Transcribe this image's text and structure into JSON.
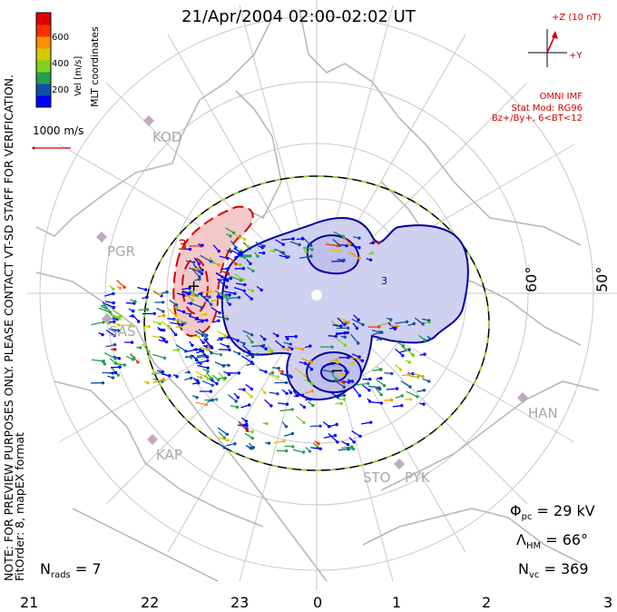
{
  "title": "21/Apr/2004 02:00-02:02 UT",
  "mlt_hours": [
    "21",
    "22",
    "23",
    "0",
    "1",
    "2",
    "3"
  ],
  "lat_labels": [
    "60°",
    "50°"
  ],
  "colorbar": {
    "ticks": [
      "600",
      "400",
      "200"
    ],
    "label": "Vel [m/s]",
    "colors": [
      "#0000ff",
      "#1050a8",
      "#20a050",
      "#80d020",
      "#d8c800",
      "#ff9000",
      "#ff3000",
      "#e00000"
    ]
  },
  "coord_label": "MLT coordinates",
  "scale_vector": "1000 m/s",
  "imf": {
    "bz_label": "+Z (10 nT)",
    "by_label": "+Y",
    "source": "OMNI IMF",
    "model_line1": "Stat Mod: RG96",
    "model_line2": "Bz+/By+, 6<BT<12"
  },
  "preview_note": "NOTE: FOR PREVIEW PURPOSES ONLY. PLEASE CONTACT VT-SD STAFF FOR VERIFICATION.",
  "fit_order": "FitOrder: 8, mapEX format",
  "stats": {
    "phi_symbol": "Φ",
    "phi_sub": "pc",
    "phi_value": "= 29 kV",
    "lambda_symbol": "Λ",
    "lambda_sub": "HM",
    "lambda_value": "= 66°",
    "nvc_symbol": "N",
    "nvc_sub": "vc",
    "nvc_value": "= 369",
    "nrads_symbol": "N",
    "nrads_sub": "rads",
    "nrads_value": "= 7"
  },
  "radar_sites": [
    "KOD",
    "PGR",
    "SAS",
    "KAP",
    "STO",
    "PYK",
    "HAN"
  ],
  "cell_signs": [
    "+",
    "−"
  ],
  "contour_labels": [
    "3",
    "3"
  ],
  "colors": {
    "contour_pos": "#d00000",
    "contour_neg": "#0000a0",
    "boundary_dash": "#90d040",
    "land": "#b8b8b8",
    "grid": "#c8c8c8",
    "pos_fill": "#f4c8c8",
    "neg_fill": "#d0d0f0"
  }
}
